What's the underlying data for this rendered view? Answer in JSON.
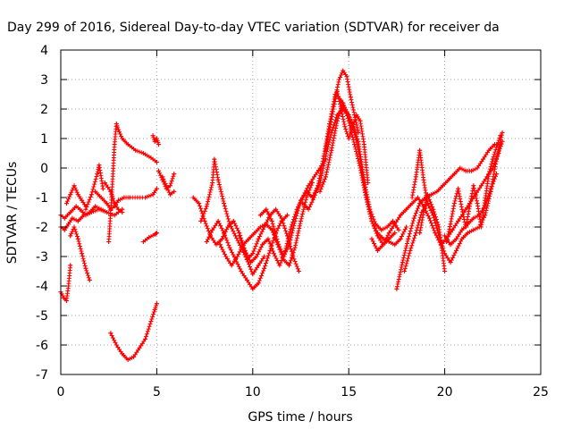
{
  "chart_data": {
    "type": "scatter",
    "title": "Day 299 of 2016, Sidereal Day-to-day VTEC variation (SDTVAR) for receiver da",
    "xlabel": "GPS time / hours",
    "ylabel": "SDTVAR / TECUs",
    "xlim": [
      0,
      25
    ],
    "ylim": [
      -7,
      4
    ],
    "x_ticks": [
      "0",
      "5",
      "10",
      "15",
      "20",
      "25"
    ],
    "y_ticks": [
      "-7",
      "-6",
      "-5",
      "-4",
      "-3",
      "-2",
      "-1",
      "0",
      "1",
      "2",
      "3",
      "4"
    ],
    "grid": true,
    "marker": "plus",
    "color": "#ff0000",
    "series": [
      {
        "x": [
          0.0,
          0.2,
          0.5,
          0.8,
          1.0,
          1.3,
          1.6,
          2.0,
          2.4,
          2.8,
          3.2
        ],
        "y": [
          -1.6,
          -1.7,
          -1.5,
          -1.3,
          -1.4,
          -1.6,
          -1.5,
          -1.4,
          -1.5,
          -1.6,
          -1.4
        ]
      },
      {
        "x": [
          0.0,
          0.2,
          0.4,
          0.6,
          0.9,
          1.2,
          1.5,
          1.8,
          2.1,
          2.4
        ],
        "y": [
          -2.0,
          -2.1,
          -1.9,
          -1.7,
          -1.8,
          -1.6,
          -1.5,
          -1.3,
          -1.4,
          -1.5
        ]
      },
      {
        "x": [
          0.0,
          0.15,
          0.3,
          0.4,
          0.5
        ],
        "y": [
          -4.2,
          -4.4,
          -4.5,
          -4.0,
          -3.3
        ]
      },
      {
        "x": [
          0.3,
          0.5,
          0.7,
          0.9,
          1.1,
          1.3
        ],
        "y": [
          -1.2,
          -0.9,
          -0.6,
          -0.9,
          -1.1,
          -1.3
        ]
      },
      {
        "x": [
          0.5,
          0.7,
          0.9,
          1.1,
          1.3,
          1.5
        ],
        "y": [
          -2.3,
          -2.0,
          -2.4,
          -2.9,
          -3.4,
          -3.8
        ]
      },
      {
        "x": [
          1.3,
          1.6,
          1.9,
          2.0,
          2.2
        ],
        "y": [
          -1.4,
          -0.9,
          -0.2,
          0.1,
          -0.7
        ]
      },
      {
        "x": [
          1.8,
          2.1,
          2.4,
          2.6,
          2.8,
          3.0,
          3.3,
          3.6,
          4.0,
          4.4,
          4.8,
          5.0
        ],
        "y": [
          -0.8,
          -1.0,
          -1.2,
          -1.4,
          -1.3,
          -1.1,
          -1.0,
          -1.0,
          -1.0,
          -1.0,
          -0.9,
          -0.7
        ]
      },
      {
        "x": [
          2.5,
          2.65,
          2.8,
          2.9,
          3.0,
          3.2,
          3.5,
          3.9,
          4.3,
          4.7,
          5.0
        ],
        "y": [
          -2.5,
          -1.0,
          0.8,
          1.5,
          1.3,
          1.0,
          0.8,
          0.6,
          0.5,
          0.35,
          0.2
        ]
      },
      {
        "x": [
          2.3,
          2.6,
          2.8,
          3.0,
          3.2
        ],
        "y": [
          -0.5,
          -0.8,
          -1.2,
          -1.4,
          -1.5
        ]
      },
      {
        "x": [
          2.6,
          2.9,
          3.2,
          3.5,
          3.8,
          4.1,
          4.4,
          4.7,
          4.9,
          5.0
        ],
        "y": [
          -5.6,
          -6.0,
          -6.3,
          -6.5,
          -6.4,
          -6.1,
          -5.8,
          -5.2,
          -4.8,
          -4.6
        ]
      },
      {
        "x": [
          4.3,
          4.6,
          4.9,
          5.0
        ],
        "y": [
          -2.5,
          -2.35,
          -2.25,
          -2.2
        ]
      },
      {
        "x": [
          4.8,
          4.9,
          5.0,
          5.1
        ],
        "y": [
          1.1,
          0.9,
          1.0,
          0.8
        ]
      },
      {
        "x": [
          5.1,
          5.3,
          5.5,
          5.7,
          5.9
        ],
        "y": [
          -0.1,
          -0.4,
          -0.7,
          -0.6,
          -0.2
        ]
      },
      {
        "x": [
          5.3,
          5.5,
          5.7,
          5.9
        ],
        "y": [
          -0.3,
          -0.6,
          -0.9,
          -0.8
        ]
      },
      {
        "x": [
          6.9,
          7.2,
          7.5,
          7.8,
          8.1,
          8.4,
          8.7,
          9.0,
          9.3,
          9.6,
          9.9,
          10.2,
          10.5,
          10.8,
          11.1,
          11.4,
          11.7,
          12.0,
          12.3,
          12.6,
          12.9,
          13.2,
          13.5,
          13.8
        ],
        "y": [
          -1.0,
          -1.2,
          -1.8,
          -2.3,
          -2.6,
          -2.4,
          -2.0,
          -1.8,
          -2.2,
          -2.8,
          -3.2,
          -3.0,
          -2.6,
          -2.4,
          -2.9,
          -3.3,
          -2.8,
          -2.0,
          -1.4,
          -1.0,
          -0.6,
          -0.3,
          0.0,
          0.3
        ]
      },
      {
        "x": [
          7.3,
          7.6,
          7.9,
          8.0,
          8.2,
          8.5,
          8.8,
          9.1,
          9.4,
          9.7,
          10.0,
          10.3,
          10.6
        ],
        "y": [
          -1.8,
          -1.3,
          -0.5,
          0.3,
          -0.4,
          -1.2,
          -1.9,
          -2.3,
          -2.7,
          -3.1,
          -3.6,
          -3.3,
          -3.0
        ]
      },
      {
        "x": [
          7.6,
          7.9,
          8.2,
          8.5,
          8.8,
          9.1,
          9.4,
          9.7,
          10.0,
          10.3,
          10.6,
          10.9,
          11.2,
          11.5,
          11.8
        ],
        "y": [
          -2.5,
          -2.1,
          -1.8,
          -2.2,
          -2.7,
          -3.1,
          -3.5,
          -3.8,
          -4.1,
          -3.9,
          -3.4,
          -2.8,
          -2.2,
          -1.8,
          -1.6
        ]
      },
      {
        "x": [
          8.3,
          8.6,
          8.9,
          9.2,
          9.5,
          9.8,
          10.1,
          10.4,
          10.7,
          11.0,
          11.3,
          11.6,
          11.9,
          12.2,
          12.5,
          12.8,
          13.1
        ],
        "y": [
          -2.6,
          -3.0,
          -3.3,
          -3.0,
          -2.6,
          -2.4,
          -2.2,
          -2.0,
          -1.9,
          -2.1,
          -2.6,
          -3.1,
          -3.3,
          -2.7,
          -1.8,
          -1.0,
          -0.5
        ]
      },
      {
        "x": [
          9.3,
          9.5,
          9.7,
          10.0,
          10.3,
          10.6,
          10.9,
          11.2,
          11.5,
          11.8,
          12.1,
          12.4
        ],
        "y": [
          -2.3,
          -2.7,
          -3.1,
          -2.9,
          -2.4,
          -2.0,
          -1.6,
          -1.4,
          -1.7,
          -2.3,
          -3.0,
          -3.5
        ]
      },
      {
        "x": [
          10.4,
          10.7,
          11.0,
          11.3,
          11.6,
          11.9,
          12.2,
          12.5,
          12.8,
          13.1,
          13.4,
          13.7,
          14.0,
          14.3,
          14.6,
          14.9,
          15.2,
          15.5,
          15.8,
          16.1,
          16.4,
          16.7,
          17.0,
          17.3,
          17.6
        ],
        "y": [
          -1.6,
          -1.4,
          -1.8,
          -2.5,
          -3.0,
          -2.6,
          -1.8,
          -1.1,
          -0.8,
          -1.0,
          -0.6,
          0.4,
          1.5,
          2.5,
          2.3,
          1.9,
          1.5,
          0.9,
          -0.4,
          -1.4,
          -1.9,
          -2.1,
          -2.0,
          -1.8,
          -2.1
        ]
      },
      {
        "x": [
          12.6,
          12.9,
          13.2,
          13.5,
          13.8,
          14.1,
          14.4,
          14.7,
          15.0,
          15.3,
          15.6,
          15.9,
          16.2,
          16.5,
          16.8,
          17.1,
          17.4
        ],
        "y": [
          -1.2,
          -1.4,
          -1.0,
          -0.5,
          0.4,
          1.2,
          1.8,
          2.0,
          1.8,
          1.2,
          0.3,
          -0.9,
          -1.8,
          -2.3,
          -2.6,
          -2.4,
          -2.2
        ]
      },
      {
        "x": [
          13.5,
          13.8,
          14.1,
          14.4,
          14.7,
          15.0,
          15.3,
          15.6,
          15.9,
          16.2,
          16.5,
          16.8,
          17.1,
          17.4,
          17.7,
          18.0
        ],
        "y": [
          -0.8,
          -0.3,
          0.6,
          1.6,
          2.2,
          1.6,
          0.8,
          0.0,
          -1.0,
          -1.8,
          -2.2,
          -2.4,
          -2.5,
          -2.6,
          -2.4,
          -2.0
        ]
      },
      {
        "x": [
          14.3,
          14.5,
          14.7,
          14.9,
          15.1,
          15.3,
          15.5
        ],
        "y": [
          2.4,
          3.0,
          3.3,
          3.1,
          2.4,
          1.8,
          1.2
        ]
      },
      {
        "x": [
          13.8,
          14.0,
          14.2,
          14.4,
          14.6,
          14.8,
          15.0,
          15.2,
          15.4,
          15.6,
          15.8,
          16.0
        ],
        "y": [
          0.6,
          1.3,
          2.0,
          2.6,
          2.0,
          1.4,
          1.0,
          1.4,
          1.8,
          1.6,
          0.8,
          -0.5
        ]
      },
      {
        "x": [
          16.2,
          16.5,
          16.8,
          17.1,
          17.4,
          17.7,
          18.0,
          18.3,
          18.6,
          18.9,
          19.2,
          19.5,
          19.8,
          20.1,
          20.4,
          20.7,
          21.0,
          21.3,
          21.6,
          21.9,
          22.2,
          22.5,
          22.8,
          23.0
        ],
        "y": [
          -2.4,
          -2.8,
          -2.6,
          -2.2,
          -1.9,
          -1.6,
          -1.4,
          -1.2,
          -1.0,
          -1.3,
          -1.7,
          -2.2,
          -2.6,
          -2.4,
          -2.1,
          -1.8,
          -1.5,
          -1.2,
          -0.9,
          -0.6,
          -0.3,
          0.0,
          0.5,
          0.9
        ]
      },
      {
        "x": [
          17.5,
          17.8,
          18.1,
          18.4,
          18.7,
          19.0,
          19.3,
          19.6,
          19.9,
          20.2,
          20.5,
          20.8,
          21.1,
          21.4,
          21.7,
          22.0,
          22.3,
          22.6,
          22.9
        ],
        "y": [
          -4.1,
          -3.2,
          -2.4,
          -1.7,
          -1.2,
          -1.0,
          -0.9,
          -0.8,
          -0.6,
          -0.4,
          -0.2,
          0.0,
          -0.1,
          -0.1,
          0.0,
          0.3,
          0.6,
          0.8,
          0.8
        ]
      },
      {
        "x": [
          17.9,
          18.2,
          18.5,
          18.8,
          19.1,
          19.4,
          19.7,
          20.0,
          20.3,
          20.6,
          20.9,
          21.2,
          21.5,
          21.8,
          22.1,
          22.4,
          22.7,
          23.0
        ],
        "y": [
          -3.5,
          -2.8,
          -2.2,
          -1.5,
          -1.2,
          -1.6,
          -2.3,
          -2.9,
          -3.2,
          -2.8,
          -2.4,
          -2.2,
          -2.1,
          -2.0,
          -1.6,
          -0.8,
          0.3,
          1.2
        ]
      },
      {
        "x": [
          18.3,
          18.5,
          18.7,
          18.9,
          19.1
        ],
        "y": [
          -1.0,
          -0.3,
          0.6,
          -0.4,
          -1.2
        ]
      },
      {
        "x": [
          18.7,
          18.9,
          19.1,
          19.4,
          19.7,
          20.0
        ],
        "y": [
          -2.2,
          -1.5,
          -0.9,
          -1.4,
          -2.0,
          -3.5
        ]
      },
      {
        "x": [
          20.1,
          20.3,
          20.5,
          20.7,
          20.9,
          21.1,
          21.3,
          21.5,
          21.7,
          21.9,
          22.1,
          22.3,
          22.5,
          22.7,
          22.9
        ],
        "y": [
          -2.5,
          -1.9,
          -1.2,
          -0.7,
          -1.4,
          -2.0,
          -1.3,
          -0.6,
          -1.2,
          -2.0,
          -1.1,
          -0.2,
          0.3,
          0.7,
          1.1
        ]
      },
      {
        "x": [
          20.0,
          20.3,
          20.6,
          20.9,
          21.2,
          21.5,
          21.8,
          22.1,
          22.4,
          22.7
        ],
        "y": [
          -2.3,
          -2.6,
          -2.4,
          -2.1,
          -1.9,
          -1.7,
          -1.6,
          -1.3,
          -0.7,
          -0.2
        ]
      }
    ]
  }
}
